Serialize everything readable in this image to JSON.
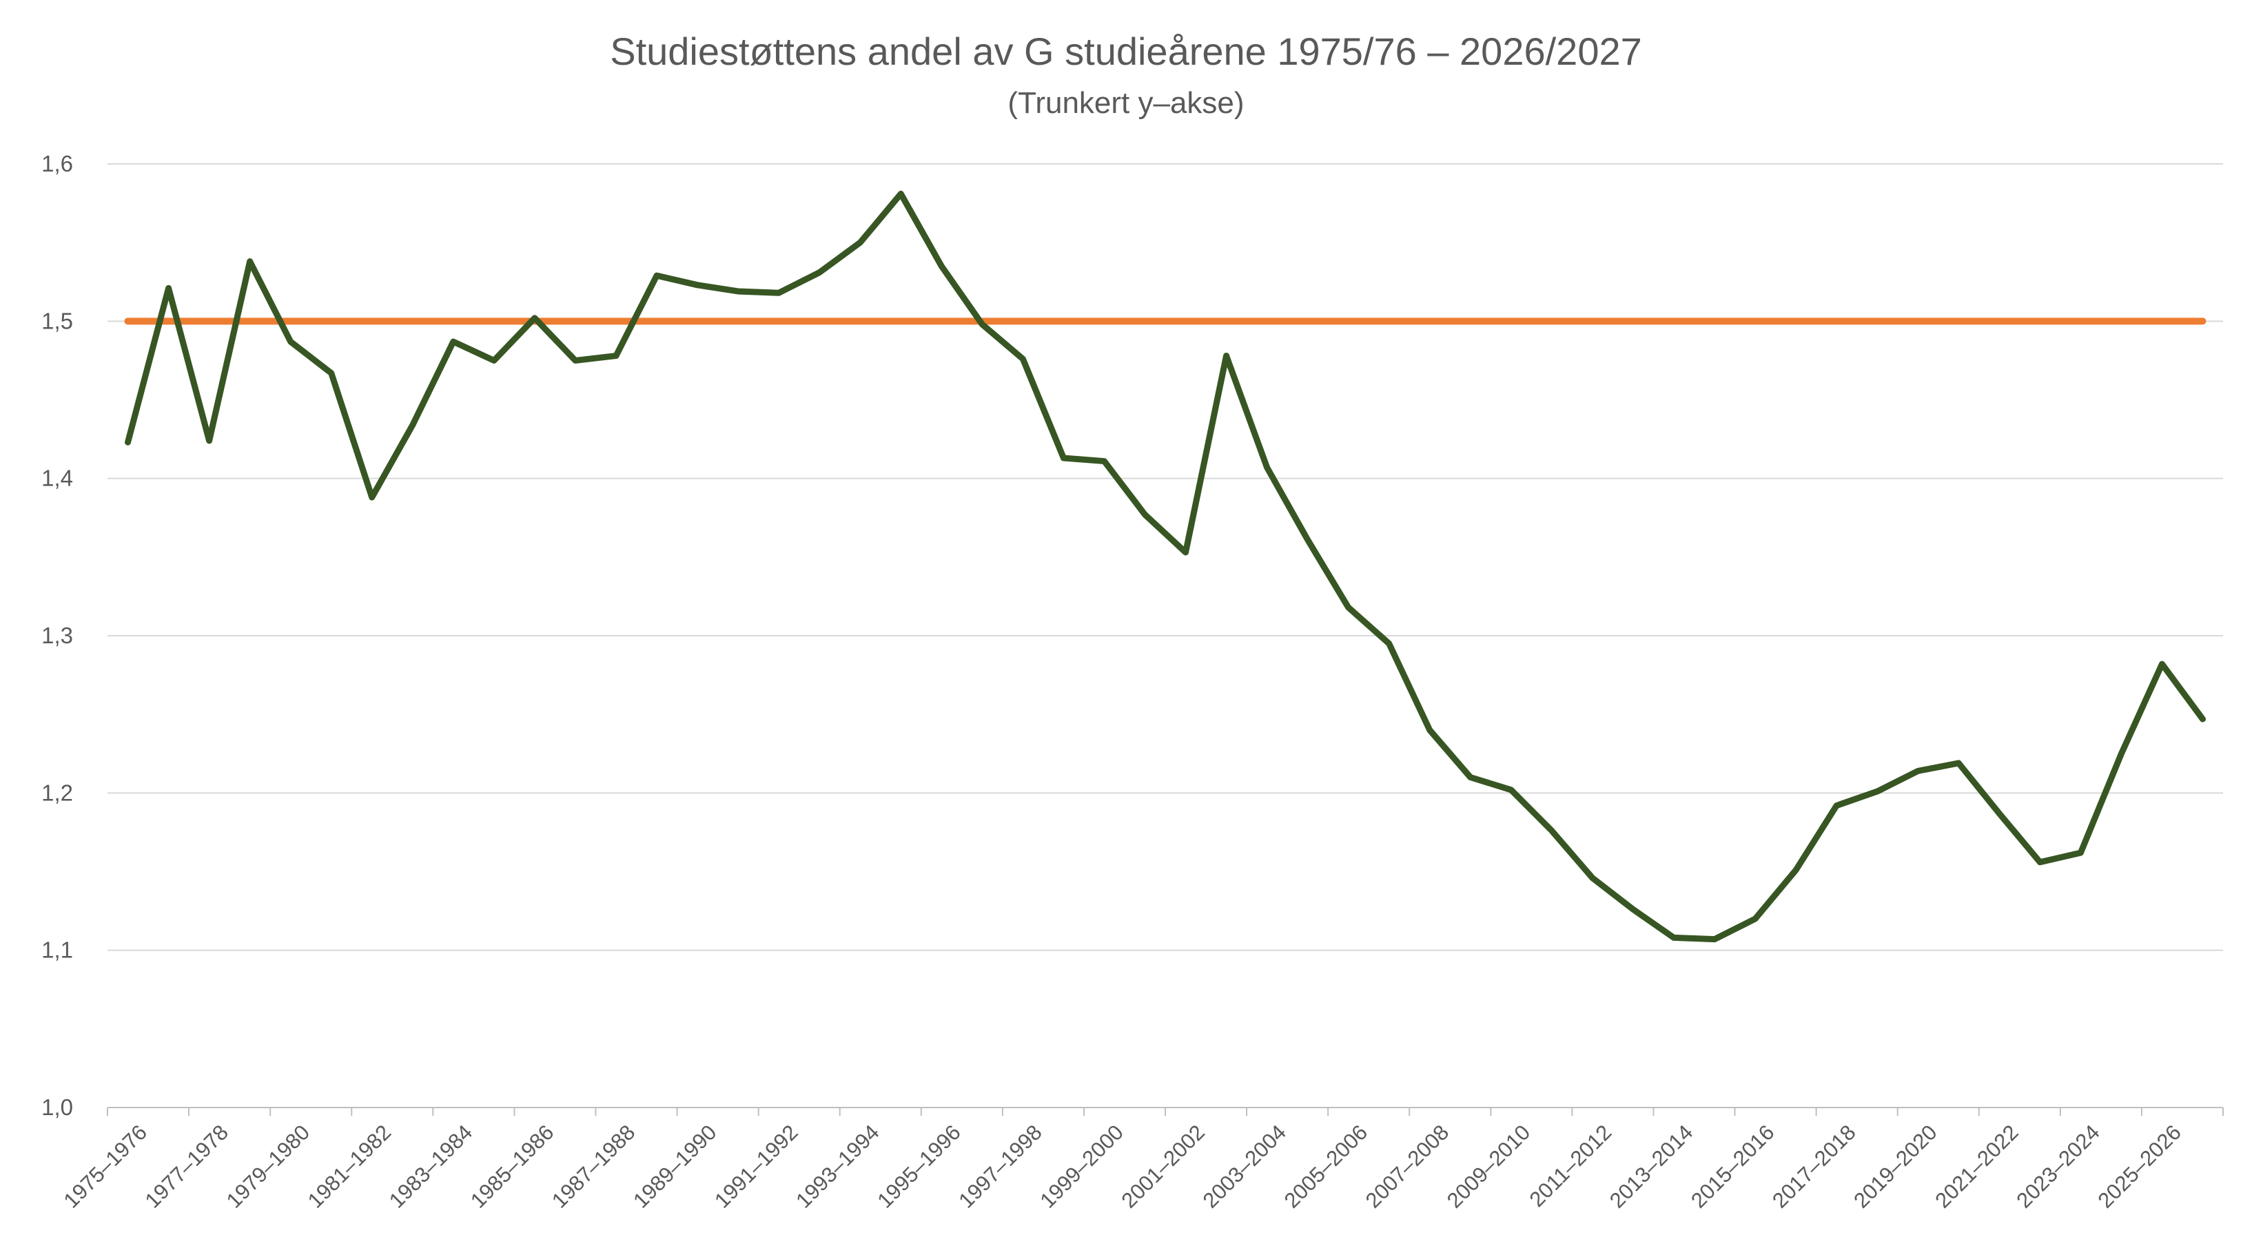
{
  "chart_data": {
    "type": "line",
    "title": "Studiestøttens andel av G studieårene 1975/76 – 2026/2027",
    "subtitle": "(Trunkert y–akse)",
    "xlabel": "",
    "ylabel": "",
    "ylim": [
      1.0,
      1.6
    ],
    "y_ticks": [
      "1,0",
      "1,1",
      "1,2",
      "1,3",
      "1,4",
      "1,5",
      "1,6"
    ],
    "y_tick_values": [
      1.0,
      1.1,
      1.2,
      1.3,
      1.4,
      1.5,
      1.6
    ],
    "grid": true,
    "legend": "none",
    "x_tick_labels": [
      "1975–1976",
      "1977–1978",
      "1979–1980",
      "1981–1982",
      "1983–1984",
      "1985–1986",
      "1987–1988",
      "1989–1990",
      "1991–1992",
      "1993–1994",
      "1995–1996",
      "1997–1998",
      "1999–2000",
      "2001–2002",
      "2003–2004",
      "2005–2006",
      "2007–2008",
      "2009–2010",
      "2011–2012",
      "2013–2014",
      "2015–2016",
      "2017–2018",
      "2019–2020",
      "2021–2022",
      "2023–2024",
      "2025–2026"
    ],
    "series": [
      {
        "color": "#375623",
        "values": [
          1.423,
          1.521,
          1.424,
          1.538,
          1.487,
          1.467,
          1.388,
          1.434,
          1.487,
          1.475,
          1.502,
          1.475,
          1.478,
          1.529,
          1.523,
          1.519,
          1.518,
          1.531,
          1.55,
          1.581,
          1.535,
          1.498,
          1.476,
          1.413,
          1.411,
          1.377,
          1.353,
          1.478,
          1.407,
          1.361,
          1.318,
          1.295,
          1.24,
          1.21,
          1.202,
          1.176,
          1.146,
          1.126,
          1.108,
          1.107,
          1.12,
          1.151,
          1.192,
          1.201,
          1.214,
          1.219,
          1.187,
          1.156,
          1.162,
          1.225,
          1.282,
          1.247
        ]
      },
      {
        "color": "#ed7d31",
        "values": [
          1.5,
          1.5,
          1.5,
          1.5,
          1.5,
          1.5,
          1.5,
          1.5,
          1.5,
          1.5,
          1.5,
          1.5,
          1.5,
          1.5,
          1.5,
          1.5,
          1.5,
          1.5,
          1.5,
          1.5,
          1.5,
          1.5,
          1.5,
          1.5,
          1.5,
          1.5,
          1.5,
          1.5,
          1.5,
          1.5,
          1.5,
          1.5,
          1.5,
          1.5,
          1.5,
          1.5,
          1.5,
          1.5,
          1.5,
          1.5,
          1.5,
          1.5,
          1.5,
          1.5,
          1.5,
          1.5,
          1.5,
          1.5,
          1.5,
          1.5,
          1.5,
          1.5
        ]
      }
    ]
  }
}
